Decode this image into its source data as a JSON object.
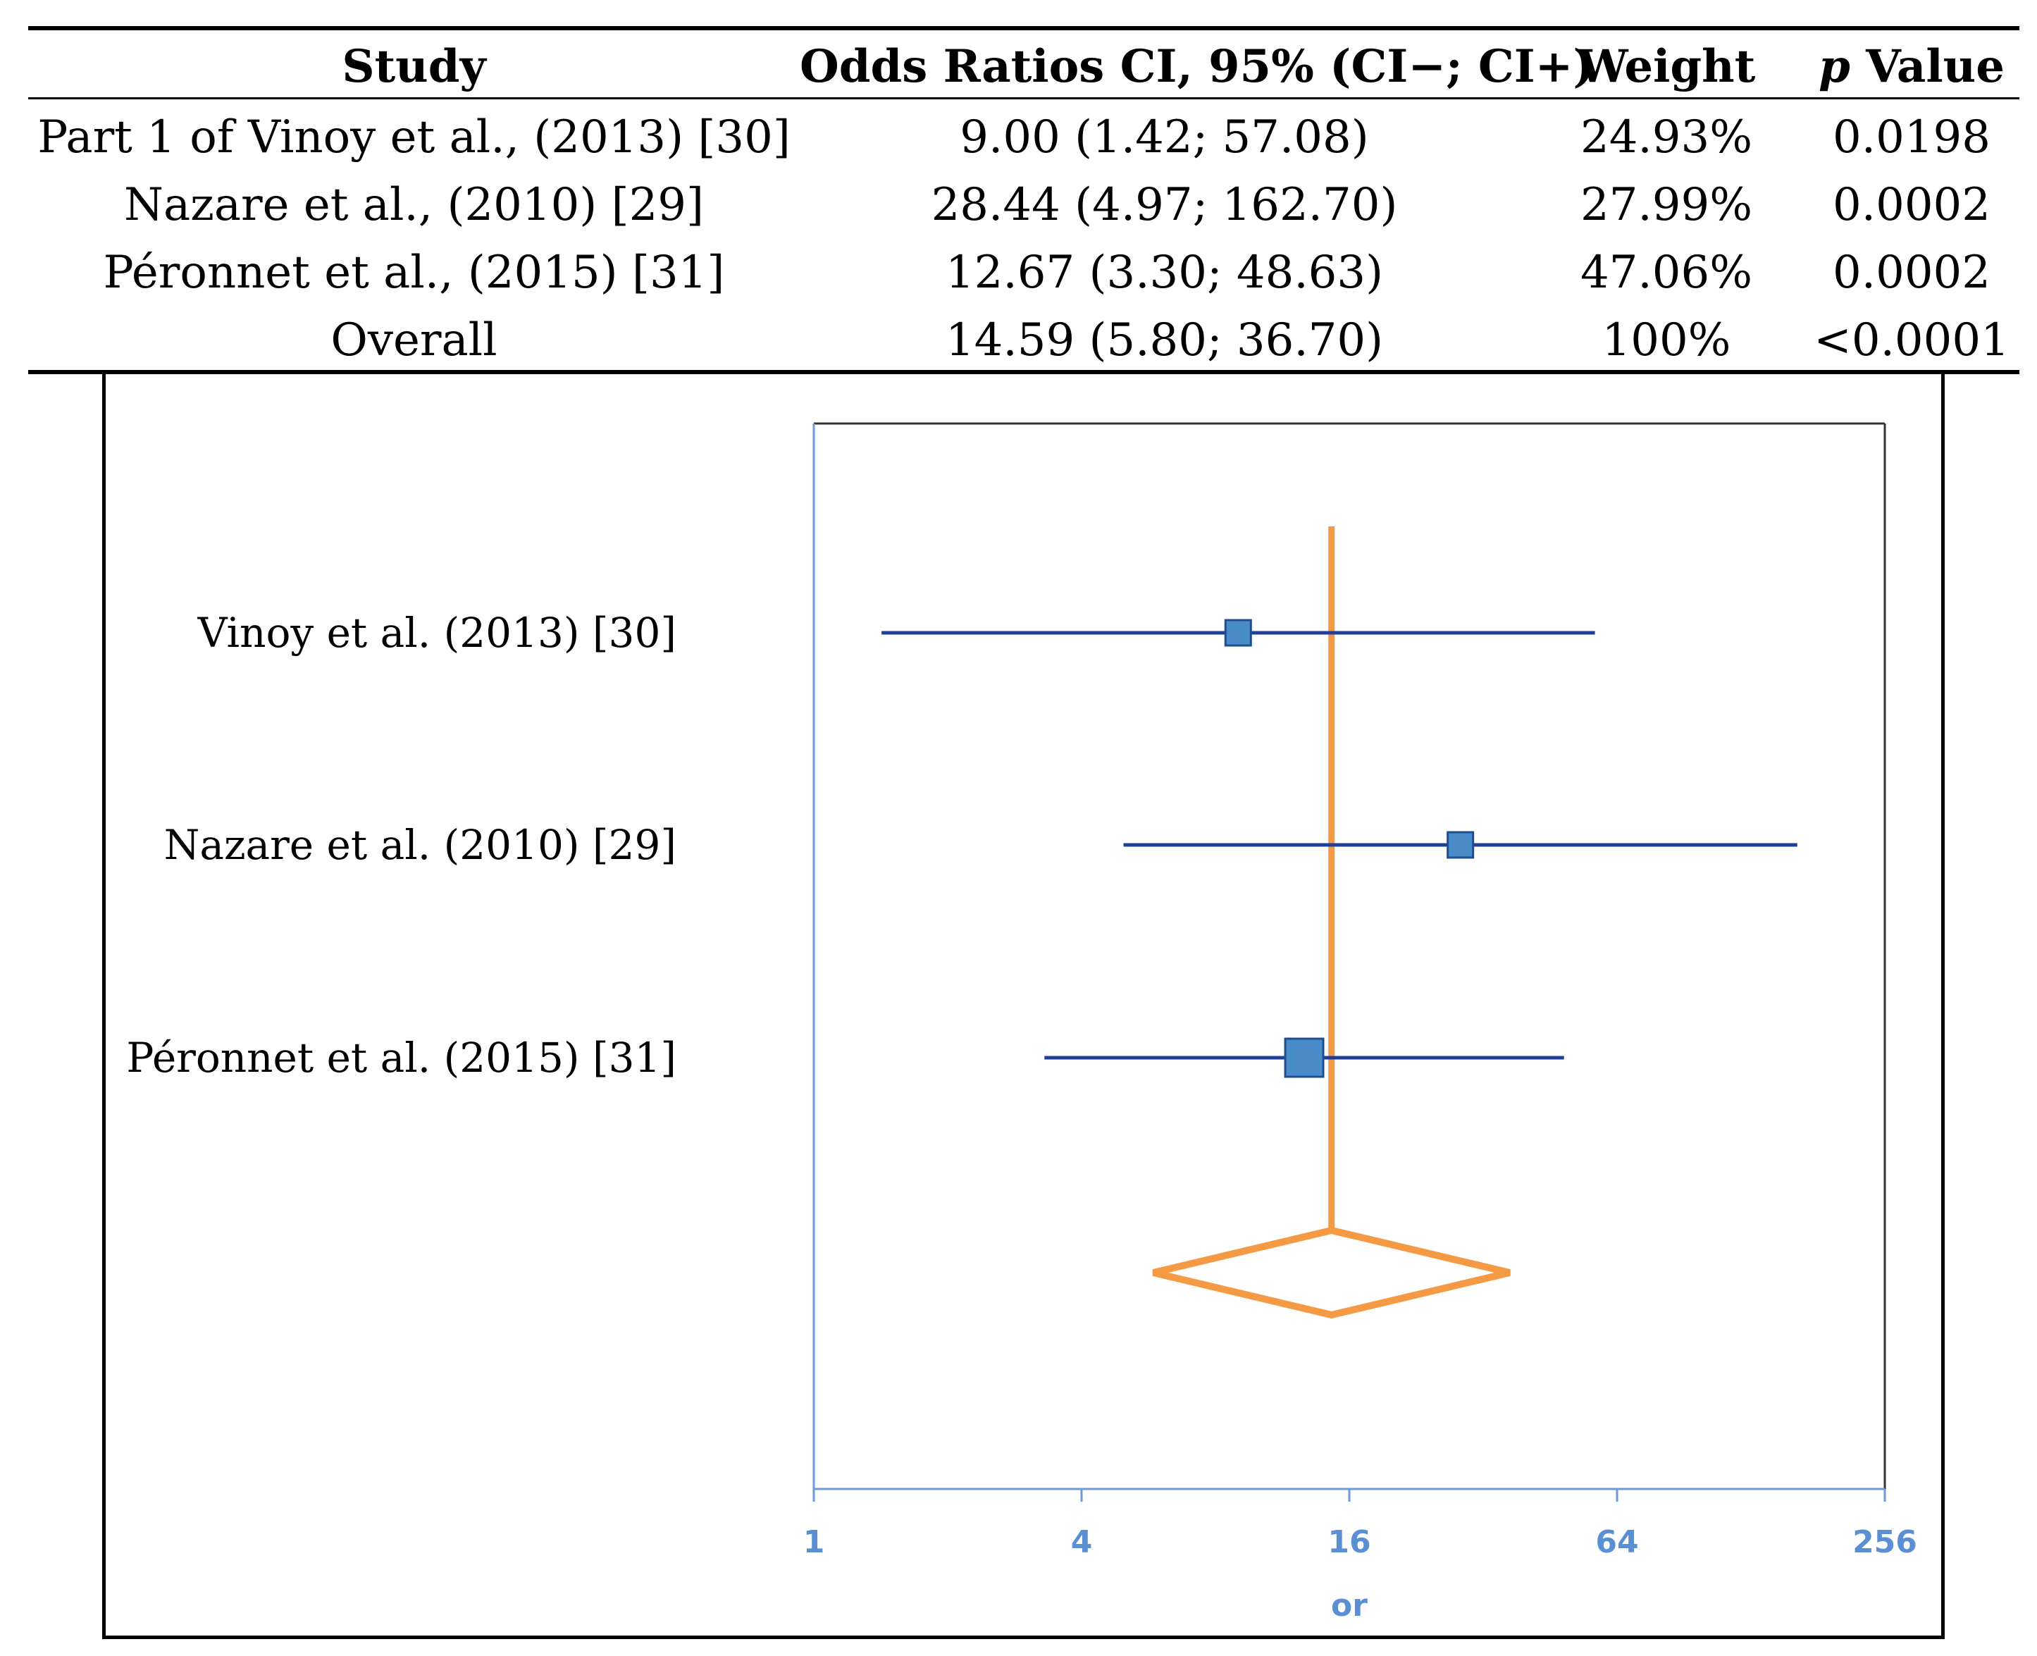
{
  "table": {
    "headers": {
      "study": "Study",
      "or_ci": "Odds Ratios CI, 95% (CI−; CI+)",
      "weight": "Weight",
      "p_symbol": "p",
      "p_word": "Value"
    },
    "rows": [
      {
        "study": "Part 1 of Vinoy et al., (2013) [30]",
        "or_ci": "9.00 (1.42; 57.08)",
        "weight": "24.93%",
        "p": "0.0198"
      },
      {
        "study": "Nazare et al., (2010) [29]",
        "or_ci": "28.44 (4.97; 162.70)",
        "weight": "27.99%",
        "p": "0.0002"
      },
      {
        "study": "Péronnet et al., (2015) [31]",
        "or_ci": "12.67 (3.30; 48.63)",
        "weight": "47.06%",
        "p": "0.0002"
      },
      {
        "study": "Overall",
        "or_ci": "14.59 (5.80; 36.70)",
        "weight": "100%",
        "p": "<0.0001"
      }
    ]
  },
  "colors": {
    "ci_line": "#1f3f99",
    "marker_fill": "#4a8cc9",
    "marker_stroke": "#1f4e8c",
    "overall": "#f59a44",
    "axis": "#6f9ad8",
    "axis_text": "#5b8fd3"
  },
  "chart_data": {
    "type": "forest",
    "x_scale": "log2",
    "xlim": [
      1,
      256
    ],
    "x_ticks": [
      1,
      4,
      16,
      64,
      256
    ],
    "xlabel": "or",
    "studies": [
      {
        "label": "Vinoy et al. (2013) [30]",
        "or": 9.0,
        "ci_low": 1.42,
        "ci_high": 57.08,
        "weight": 24.93
      },
      {
        "label": "Nazare et al. (2010) [29]",
        "or": 28.44,
        "ci_low": 4.97,
        "ci_high": 162.7,
        "weight": 27.99
      },
      {
        "label": "Péronnet et al. (2015) [31]",
        "or": 12.67,
        "ci_low": 3.3,
        "ci_high": 48.63,
        "weight": 47.06
      }
    ],
    "overall": {
      "or": 14.59,
      "ci_low": 5.8,
      "ci_high": 36.7
    }
  }
}
